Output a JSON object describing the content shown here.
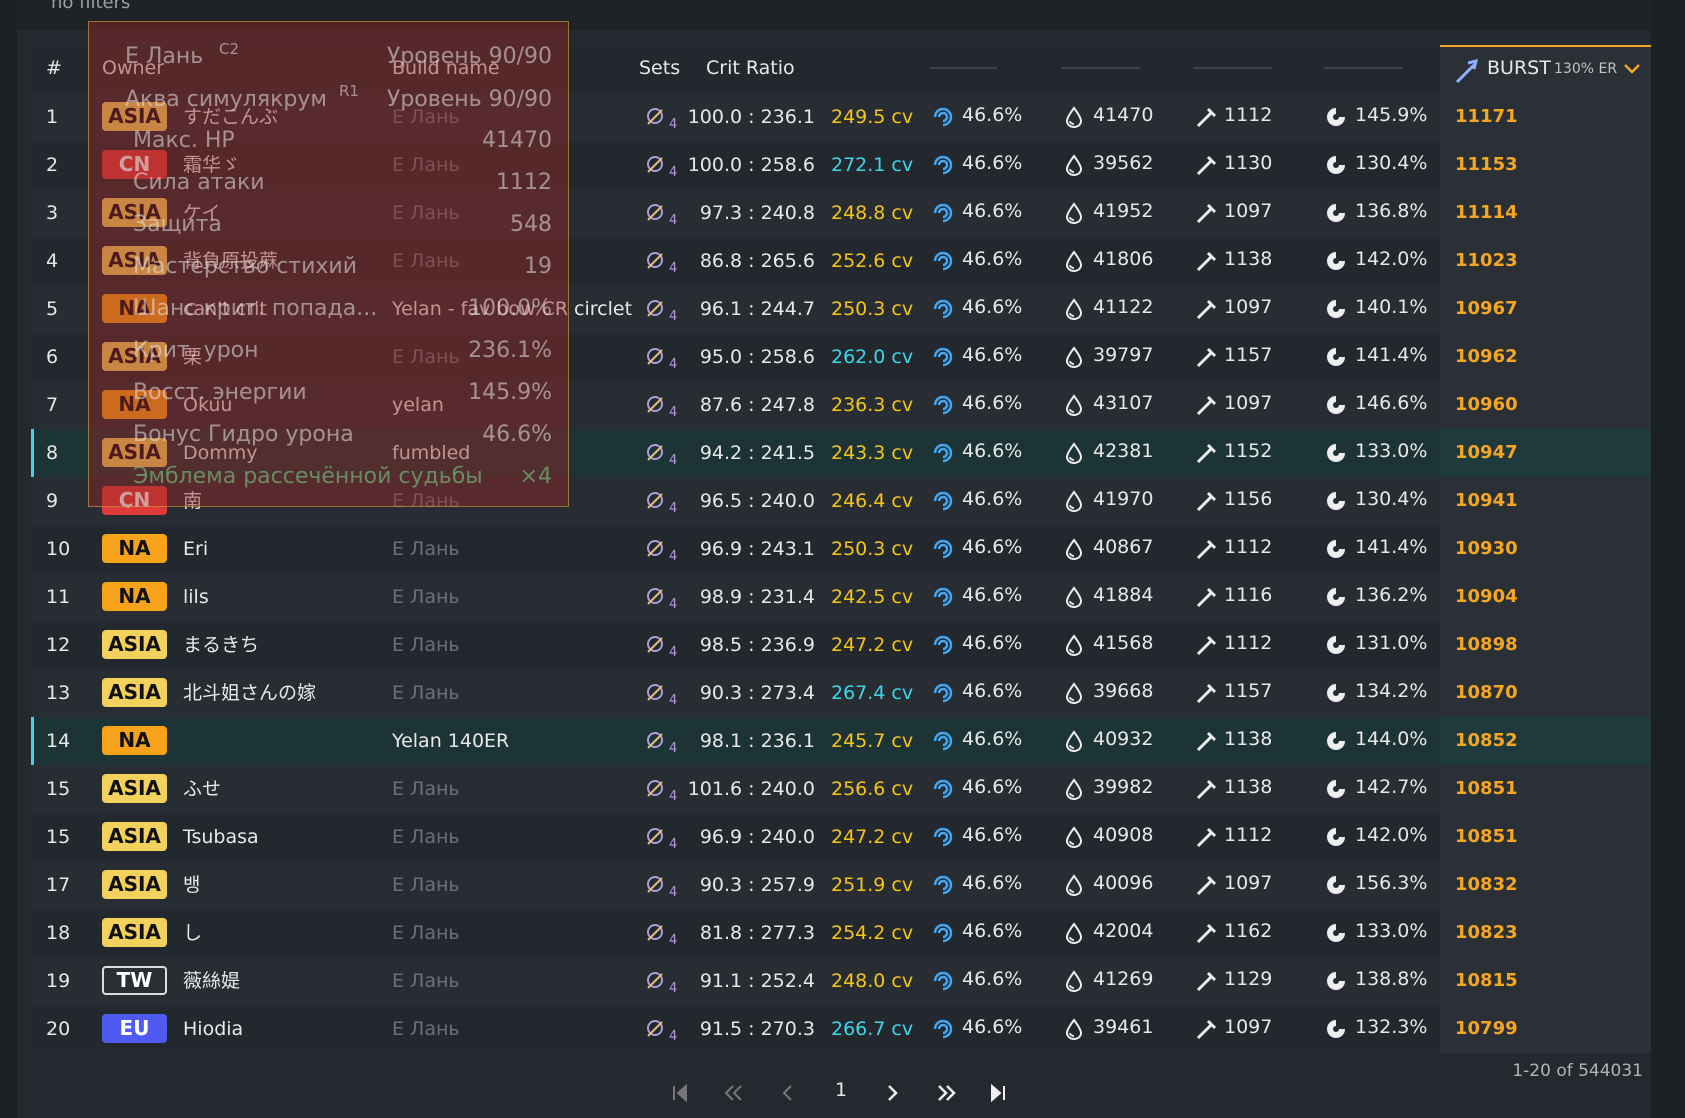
{
  "filters": {
    "label": "no filters"
  },
  "table": {
    "headers": {
      "rank": "#",
      "owner": "Owner",
      "build": "Build name",
      "sets": "Sets",
      "crit": "Crit Ratio",
      "burst": "BURST",
      "burst_note": "130% ER"
    },
    "rows": [
      {
        "rank": 1,
        "region": "ASIA",
        "region_color": "#f2d15c",
        "owner": "すだこんぶ",
        "build": "Е Лань",
        "build_color": "#6b7177",
        "set_count": "4",
        "crit_ratio": "100.0 : 236.1",
        "cv": "249.5 cv",
        "cv_color": "#f5c518",
        "hydro": "46.6%",
        "hp": "41470",
        "atk": "1112",
        "er": "145.9%",
        "burst": "11171"
      },
      {
        "rank": 2,
        "region": "CN",
        "region_color": "#e03b3b",
        "owner": "霜华ゞ",
        "build": "Е Лань",
        "build_color": "#6b7177",
        "set_count": "4",
        "crit_ratio": "100.0 : 258.6",
        "cv": "272.1 cv",
        "cv_color": "#3fd6e8",
        "hydro": "46.6%",
        "hp": "39562",
        "atk": "1130",
        "er": "130.4%",
        "burst": "11153"
      },
      {
        "rank": 3,
        "region": "ASIA",
        "region_color": "#f2d15c",
        "owner": "ケイ",
        "build": "Е Лань",
        "build_color": "#6b7177",
        "set_count": "4",
        "crit_ratio": "97.3 : 240.8",
        "cv": "248.8 cv",
        "cv_color": "#f5c518",
        "hydro": "46.6%",
        "hp": "41952",
        "atk": "1097",
        "er": "136.8%",
        "burst": "11114"
      },
      {
        "rank": 4,
        "region": "ASIA",
        "region_color": "#f2d15c",
        "owner": "背負原投蔴",
        "build": "Е Лань",
        "build_color": "#6b7177",
        "set_count": "4",
        "crit_ratio": "86.8 : 265.6",
        "cv": "252.6 cv",
        "cv_color": "#f5c518",
        "hydro": "46.6%",
        "hp": "41806",
        "atk": "1138",
        "er": "142.0%",
        "burst": "11023"
      },
      {
        "rank": 5,
        "region": "NA",
        "region_color": "#f7a21b",
        "owner": "can't crit",
        "build": "Yelan - fav bow CR circlet",
        "build_color": "#e8e8e8",
        "set_count": "4",
        "crit_ratio": "96.1 : 244.7",
        "cv": "250.3 cv",
        "cv_color": "#f5c518",
        "hydro": "46.6%",
        "hp": "41122",
        "atk": "1097",
        "er": "140.1%",
        "burst": "10967"
      },
      {
        "rank": 6,
        "region": "ASIA",
        "region_color": "#f2d15c",
        "owner": "栗",
        "build": "Е Лань",
        "build_color": "#6b7177",
        "set_count": "4",
        "crit_ratio": "95.0 : 258.6",
        "cv": "262.0 cv",
        "cv_color": "#3fd6e8",
        "hydro": "46.6%",
        "hp": "39797",
        "atk": "1157",
        "er": "141.4%",
        "burst": "10962"
      },
      {
        "rank": 7,
        "region": "NA",
        "region_color": "#f7a21b",
        "owner": "Okuu",
        "build": "yelan",
        "build_color": "#e8e8e8",
        "set_count": "4",
        "crit_ratio": "87.6 : 247.8",
        "cv": "236.3 cv",
        "cv_color": "#f5c518",
        "hydro": "46.6%",
        "hp": "43107",
        "atk": "1097",
        "er": "146.6%",
        "burst": "10960"
      },
      {
        "rank": 8,
        "region": "ASIA",
        "region_color": "#f2d15c",
        "owner": "Dommy",
        "build": "fumbled",
        "build_color": "#e8e8e8",
        "set_count": "4",
        "crit_ratio": "94.2 : 241.5",
        "cv": "243.3 cv",
        "cv_color": "#f5c518",
        "hydro": "46.6%",
        "hp": "42381",
        "atk": "1152",
        "er": "133.0%",
        "burst": "10947",
        "highlighted": true
      },
      {
        "rank": 9,
        "region": "CN",
        "region_color": "#e03b3b",
        "owner": "南",
        "build": "Е Лань",
        "build_color": "#6b7177",
        "set_count": "4",
        "crit_ratio": "96.5 : 240.0",
        "cv": "246.4 cv",
        "cv_color": "#f5c518",
        "hydro": "46.6%",
        "hp": "41970",
        "atk": "1156",
        "er": "130.4%",
        "burst": "10941"
      },
      {
        "rank": 10,
        "region": "NA",
        "region_color": "#f7a21b",
        "owner": "Eri",
        "build": "Е Лань",
        "build_color": "#6b7177",
        "set_count": "4",
        "crit_ratio": "96.9 : 243.1",
        "cv": "250.3 cv",
        "cv_color": "#f5c518",
        "hydro": "46.6%",
        "hp": "40867",
        "atk": "1112",
        "er": "141.4%",
        "burst": "10930"
      },
      {
        "rank": 11,
        "region": "NA",
        "region_color": "#f7a21b",
        "owner": "lils",
        "build": "Е Лань",
        "build_color": "#6b7177",
        "set_count": "4",
        "crit_ratio": "98.9 : 231.4",
        "cv": "242.5 cv",
        "cv_color": "#f5c518",
        "hydro": "46.6%",
        "hp": "41884",
        "atk": "1116",
        "er": "136.2%",
        "burst": "10904"
      },
      {
        "rank": 12,
        "region": "ASIA",
        "region_color": "#f2d15c",
        "owner": "まるきち",
        "build": "Е Лань",
        "build_color": "#6b7177",
        "set_count": "4",
        "crit_ratio": "98.5 : 236.9",
        "cv": "247.2 cv",
        "cv_color": "#f5c518",
        "hydro": "46.6%",
        "hp": "41568",
        "atk": "1112",
        "er": "131.0%",
        "burst": "10898"
      },
      {
        "rank": 13,
        "region": "ASIA",
        "region_color": "#f2d15c",
        "owner": "北斗姐さんの嫁",
        "build": "Е Лань",
        "build_color": "#6b7177",
        "set_count": "4",
        "crit_ratio": "90.3 : 273.4",
        "cv": "267.4 cv",
        "cv_color": "#3fd6e8",
        "hydro": "46.6%",
        "hp": "39668",
        "atk": "1157",
        "er": "134.2%",
        "burst": "10870"
      },
      {
        "rank": 14,
        "region": "NA",
        "region_color": "#f7a21b",
        "build": "Yelan 140ER",
        "build_color": "#e8e8e8",
        "set_count": "4",
        "crit_ratio": "98.1 : 236.1",
        "cv": "245.7 cv",
        "cv_color": "#f5c518",
        "hydro": "46.6%",
        "hp": "40932",
        "atk": "1138",
        "er": "144.0%",
        "burst": "10852",
        "highlighted": true
      },
      {
        "rank": 15,
        "region": "ASIA",
        "region_color": "#f2d15c",
        "owner": "ふせ",
        "build": "Е Лань",
        "build_color": "#6b7177",
        "set_count": "4",
        "crit_ratio": "101.6 : 240.0",
        "cv": "256.6 cv",
        "cv_color": "#f5c518",
        "hydro": "46.6%",
        "hp": "39982",
        "atk": "1138",
        "er": "142.7%",
        "burst": "10851"
      },
      {
        "rank": 15,
        "region": "ASIA",
        "region_color": "#f2d15c",
        "owner": "Tsubasa",
        "build": "Е Лань",
        "build_color": "#6b7177",
        "set_count": "4",
        "crit_ratio": "96.9 : 240.0",
        "cv": "247.2 cv",
        "cv_color": "#f5c518",
        "hydro": "46.6%",
        "hp": "40908",
        "atk": "1112",
        "er": "142.0%",
        "burst": "10851"
      },
      {
        "rank": 17,
        "region": "ASIA",
        "region_color": "#f2d15c",
        "owner": "뱅",
        "build": "Е Лань",
        "build_color": "#6b7177",
        "set_count": "4",
        "crit_ratio": "90.3 : 257.9",
        "cv": "251.9 cv",
        "cv_color": "#f5c518",
        "hydro": "46.6%",
        "hp": "40096",
        "atk": "1097",
        "er": "156.3%",
        "burst": "10832"
      },
      {
        "rank": 18,
        "region": "ASIA",
        "region_color": "#f2d15c",
        "owner": "し",
        "build": "Е Лань",
        "build_color": "#6b7177",
        "set_count": "4",
        "crit_ratio": "81.8 : 277.3",
        "cv": "254.2 cv",
        "cv_color": "#f5c518",
        "hydro": "46.6%",
        "hp": "42004",
        "atk": "1162",
        "er": "133.0%",
        "burst": "10823"
      },
      {
        "rank": 19,
        "region": "TW",
        "region_color": "#2a2f34",
        "owner": "薇絲媞",
        "build": "Е Лань",
        "build_color": "#6b7177",
        "set_count": "4",
        "crit_ratio": "91.1 : 252.4",
        "cv": "248.0 cv",
        "cv_color": "#f5c518",
        "hydro": "46.6%",
        "hp": "41269",
        "atk": "1129",
        "er": "138.8%",
        "burst": "10815"
      },
      {
        "rank": 20,
        "region": "EU",
        "region_color": "#4f5bf0",
        "owner": "Hiodia",
        "build": "Е Лань",
        "build_color": "#6b7177",
        "set_count": "4",
        "crit_ratio": "91.5 : 270.3",
        "cv": "266.7 cv",
        "cv_color": "#3fd6e8",
        "hydro": "46.6%",
        "hp": "39461",
        "atk": "1097",
        "er": "132.3%",
        "burst": "10799"
      }
    ]
  },
  "pagination": {
    "page": "1",
    "summary": "1-20 of 544031"
  },
  "tooltip": {
    "character": "Е Лань",
    "constellation": "C2",
    "character_level": "Уровень 90/90",
    "weapon": "Аква симулякрум",
    "refinement": "R1",
    "weapon_level": "Уровень 90/90",
    "stats": [
      {
        "label": "Макс. HP",
        "value": "41470"
      },
      {
        "label": "Сила атаки",
        "value": "1112"
      },
      {
        "label": "Защита",
        "value": "548"
      },
      {
        "label": "Мастерство стихий",
        "value": "19"
      },
      {
        "label": "Шанс крит. попада...",
        "value": "100.0%"
      },
      {
        "label": "Крит. урон",
        "value": "236.1%"
      },
      {
        "label": "Восст. энергии",
        "value": "145.9%"
      },
      {
        "label": "Бонус Гидро урона",
        "value": "46.6%"
      }
    ],
    "set": "Эмблема рассечённой судьбы",
    "set_count": "×4"
  }
}
